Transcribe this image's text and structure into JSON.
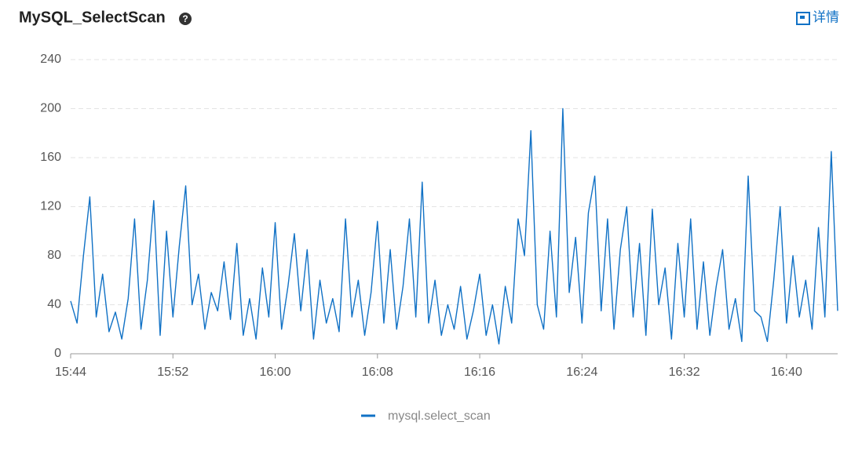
{
  "chart_data": {
    "type": "line",
    "title": "MySQL_SelectScan",
    "detail_link": "详情",
    "x": [
      944,
      944.5,
      945,
      945.5,
      946,
      946.5,
      947,
      947.5,
      948,
      948.5,
      949,
      949.5,
      950,
      950.5,
      951,
      951.5,
      952,
      952.5,
      953,
      953.5,
      954,
      954.5,
      955,
      955.5,
      956,
      956.5,
      957,
      957.5,
      958,
      958.5,
      959,
      959.5,
      960,
      960.5,
      961,
      961.5,
      962,
      962.5,
      963,
      963.5,
      964,
      964.5,
      965,
      965.5,
      966,
      966.5,
      967,
      967.5,
      968,
      968.5,
      969,
      969.5,
      970,
      970.5,
      971,
      971.5,
      972,
      972.5,
      973,
      973.5,
      974,
      974.5,
      975,
      975.5,
      976,
      976.5,
      977,
      977.5,
      978,
      978.5,
      979,
      979.5,
      980,
      980.5,
      981,
      981.5,
      982,
      982.5,
      983,
      983.5,
      984,
      984.5,
      985,
      985.5,
      986,
      986.5,
      987,
      987.5,
      988,
      988.5,
      989,
      989.5,
      990,
      990.5,
      991,
      991.5,
      992,
      992.5,
      993,
      993.5,
      994,
      994.5,
      995,
      995.5,
      996,
      996.5,
      997,
      997.5,
      998,
      998.5,
      999,
      999.5,
      1000,
      1000.5,
      1001,
      1001.5,
      1002,
      1002.5,
      1003,
      1003.5,
      1004
    ],
    "series": [
      {
        "name": "mysql.select_scan",
        "color": "#1071c5",
        "values": [
          43,
          25,
          80,
          128,
          30,
          65,
          18,
          34,
          12,
          45,
          110,
          20,
          60,
          125,
          15,
          100,
          30,
          88,
          137,
          40,
          65,
          20,
          50,
          35,
          75,
          28,
          90,
          15,
          45,
          12,
          70,
          30,
          107,
          20,
          55,
          98,
          35,
          85,
          12,
          60,
          25,
          45,
          18,
          110,
          30,
          60,
          15,
          50,
          108,
          25,
          85,
          20,
          55,
          110,
          30,
          140,
          25,
          60,
          15,
          40,
          20,
          55,
          12,
          35,
          65,
          15,
          40,
          8,
          55,
          25,
          110,
          80,
          182,
          40,
          20,
          100,
          30,
          200,
          50,
          95,
          25,
          115,
          145,
          35,
          110,
          20,
          85,
          120,
          30,
          90,
          15,
          118,
          40,
          70,
          12,
          90,
          30,
          110,
          20,
          75,
          15,
          55,
          85,
          20,
          45,
          10,
          145,
          35,
          30,
          10,
          60,
          120,
          25,
          80,
          30,
          60,
          20,
          103,
          30,
          165,
          35
        ]
      }
    ],
    "xlim": [
      944,
      1004
    ],
    "xticks": [
      {
        "value": 944,
        "label": "15:44"
      },
      {
        "value": 952,
        "label": "15:52"
      },
      {
        "value": 960,
        "label": "16:00"
      },
      {
        "value": 968,
        "label": "16:08"
      },
      {
        "value": 976,
        "label": "16:16"
      },
      {
        "value": 984,
        "label": "16:24"
      },
      {
        "value": 992,
        "label": "16:32"
      },
      {
        "value": 1000,
        "label": "16:40"
      }
    ],
    "ylim": [
      0,
      240
    ],
    "yticks": [
      0,
      40,
      80,
      120,
      160,
      200,
      240
    ],
    "grid": true
  }
}
